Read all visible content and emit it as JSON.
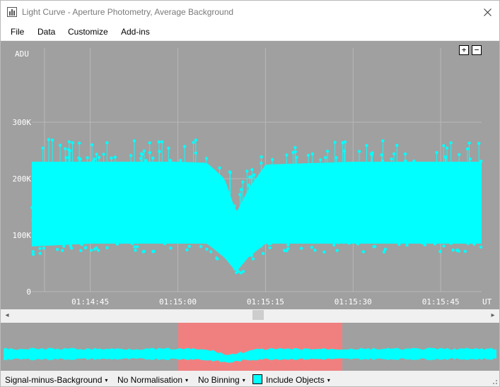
{
  "window": {
    "title": "Light Curve - Aperture Photometry, Average Background"
  },
  "menu": {
    "items": [
      "File",
      "Data",
      "Customize",
      "Add-ins"
    ]
  },
  "plot": {
    "zoom_in_label": "+",
    "zoom_out_label": "−",
    "y_unit": "ADU",
    "x_unit": "UT",
    "y_ticks": [
      "0",
      "100K",
      "200K",
      "300K"
    ],
    "x_ticks": [
      "01:14:45",
      "01:15:00",
      "01:15:15",
      "01:15:30",
      "01:15:45"
    ],
    "series_color": "#00ffff",
    "background_color": "#a0a0a0",
    "grid_color": "#b8b8b8",
    "selection_color": "#f08080"
  },
  "chart_data": {
    "type": "scatter",
    "title": "",
    "ylabel": "ADU",
    "xlabel": "UT",
    "ylim": [
      0,
      300000
    ],
    "xlim": [
      "01:14:35",
      "01:15:52"
    ],
    "grid": true,
    "series": [
      {
        "color": "#00ffff",
        "x": [
          "01:14:35",
          "01:14:45",
          "01:15:00",
          "01:15:05",
          "01:15:08",
          "01:15:10",
          "01:15:12",
          "01:15:15",
          "01:15:30",
          "01:15:45",
          "01:15:52"
        ],
        "y": [
          150000,
          150000,
          150000,
          148000,
          110000,
          70000,
          110000,
          150000,
          150000,
          150000,
          150000
        ],
        "upper_envelope": [
          230000,
          230000,
          230000,
          228000,
          200000,
          140000,
          180000,
          225000,
          230000,
          230000,
          230000
        ],
        "lower_envelope": [
          80000,
          85000,
          85000,
          85000,
          60000,
          35000,
          60000,
          85000,
          85000,
          85000,
          85000
        ]
      }
    ]
  },
  "scrollbar": {
    "left_arrow": "◂",
    "right_arrow": "▸"
  },
  "status": {
    "signal_mode": "Signal-minus-Background",
    "normalisation": "No Normalisation",
    "binning": "No Binning",
    "include_objects": "Include Objects",
    "include_objects_color": "#00ffff",
    "caret": "▾"
  }
}
